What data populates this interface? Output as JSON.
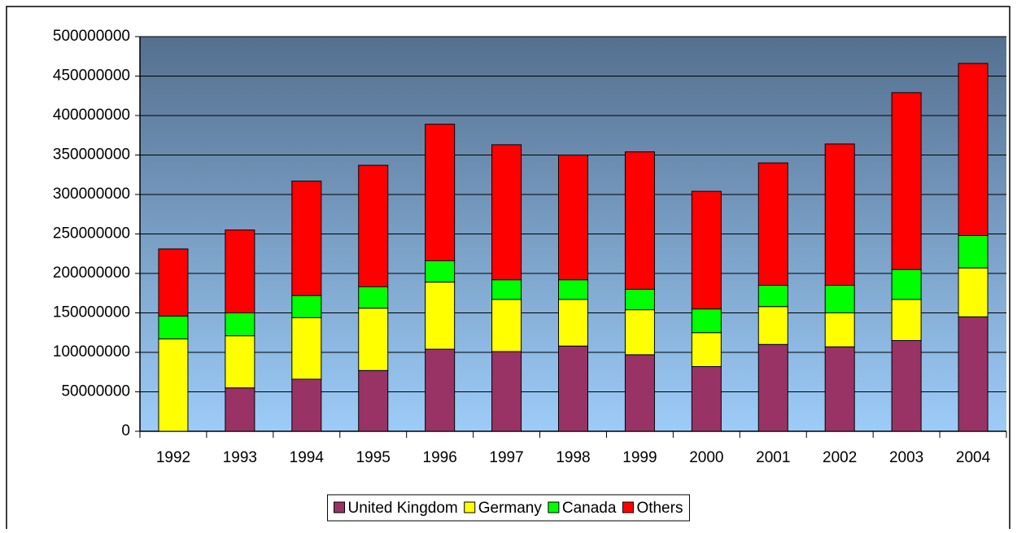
{
  "chart_data": {
    "type": "stacked_bar",
    "categories": [
      "1992",
      "1993",
      "1994",
      "1995",
      "1996",
      "1997",
      "1998",
      "1999",
      "2000",
      "2001",
      "2002",
      "2003",
      "2004"
    ],
    "series": [
      {
        "name": "United Kingdom",
        "color": "#993366",
        "values": [
          0,
          55000000,
          66000000,
          77000000,
          104000000,
          101000000,
          108000000,
          97000000,
          82000000,
          110000000,
          107000000,
          115000000,
          145000000
        ]
      },
      {
        "name": "Germany",
        "color": "#ffff00",
        "values": [
          117000000,
          66000000,
          78000000,
          79000000,
          85000000,
          66000000,
          59000000,
          57000000,
          43000000,
          48000000,
          43000000,
          52000000,
          62000000
        ]
      },
      {
        "name": "Canada",
        "color": "#00ff00",
        "values": [
          29000000,
          29000000,
          28000000,
          27000000,
          27000000,
          25000000,
          25000000,
          26000000,
          30000000,
          27000000,
          35000000,
          38000000,
          41000000
        ]
      },
      {
        "name": "Others",
        "color": "#ff0000",
        "values": [
          85000000,
          105000000,
          145000000,
          154000000,
          173000000,
          171000000,
          158000000,
          174000000,
          149000000,
          155000000,
          179000000,
          224000000,
          218000000
        ]
      }
    ],
    "ylim": [
      0,
      500000000
    ],
    "yticks": [
      0,
      50000000,
      100000000,
      150000000,
      200000000,
      250000000,
      300000000,
      350000000,
      400000000,
      450000000,
      500000000
    ],
    "grid": true,
    "legend": "bottom"
  }
}
